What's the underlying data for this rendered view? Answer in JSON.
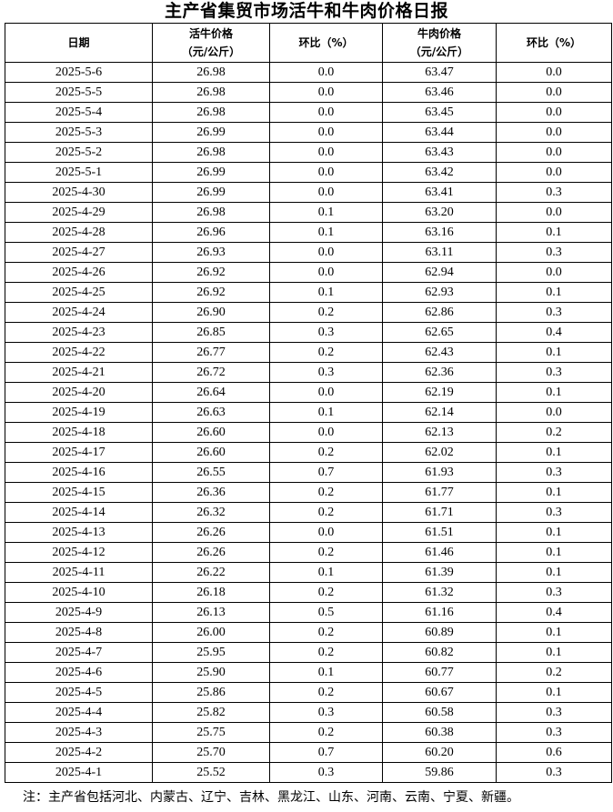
{
  "title": "主产省集贸市场活牛和牛肉价格日报",
  "headers": {
    "date": "日期",
    "cattle_price": "活牛价格",
    "cattle_unit": "（元/公斤）",
    "cattle_mom": "环比（%）",
    "beef_price": "牛肉价格",
    "beef_unit": "（元/公斤）",
    "beef_mom": "环比（%）"
  },
  "rows": [
    [
      "2025-5-6",
      "26.98",
      "0.0",
      "63.47",
      "0.0"
    ],
    [
      "2025-5-5",
      "26.98",
      "0.0",
      "63.46",
      "0.0"
    ],
    [
      "2025-5-4",
      "26.98",
      "0.0",
      "63.45",
      "0.0"
    ],
    [
      "2025-5-3",
      "26.99",
      "0.0",
      "63.44",
      "0.0"
    ],
    [
      "2025-5-2",
      "26.98",
      "0.0",
      "63.43",
      "0.0"
    ],
    [
      "2025-5-1",
      "26.99",
      "0.0",
      "63.42",
      "0.0"
    ],
    [
      "2025-4-30",
      "26.99",
      "0.0",
      "63.41",
      "0.3"
    ],
    [
      "2025-4-29",
      "26.98",
      "0.1",
      "63.20",
      "0.0"
    ],
    [
      "2025-4-28",
      "26.96",
      "0.1",
      "63.16",
      "0.1"
    ],
    [
      "2025-4-27",
      "26.93",
      "0.0",
      "63.11",
      "0.3"
    ],
    [
      "2025-4-26",
      "26.92",
      "0.0",
      "62.94",
      "0.0"
    ],
    [
      "2025-4-25",
      "26.92",
      "0.1",
      "62.93",
      "0.1"
    ],
    [
      "2025-4-24",
      "26.90",
      "0.2",
      "62.86",
      "0.3"
    ],
    [
      "2025-4-23",
      "26.85",
      "0.3",
      "62.65",
      "0.4"
    ],
    [
      "2025-4-22",
      "26.77",
      "0.2",
      "62.43",
      "0.1"
    ],
    [
      "2025-4-21",
      "26.72",
      "0.3",
      "62.36",
      "0.3"
    ],
    [
      "2025-4-20",
      "26.64",
      "0.0",
      "62.19",
      "0.1"
    ],
    [
      "2025-4-19",
      "26.63",
      "0.1",
      "62.14",
      "0.0"
    ],
    [
      "2025-4-18",
      "26.60",
      "0.0",
      "62.13",
      "0.2"
    ],
    [
      "2025-4-17",
      "26.60",
      "0.2",
      "62.02",
      "0.1"
    ],
    [
      "2025-4-16",
      "26.55",
      "0.7",
      "61.93",
      "0.3"
    ],
    [
      "2025-4-15",
      "26.36",
      "0.2",
      "61.77",
      "0.1"
    ],
    [
      "2025-4-14",
      "26.32",
      "0.2",
      "61.71",
      "0.3"
    ],
    [
      "2025-4-13",
      "26.26",
      "0.0",
      "61.51",
      "0.1"
    ],
    [
      "2025-4-12",
      "26.26",
      "0.2",
      "61.46",
      "0.1"
    ],
    [
      "2025-4-11",
      "26.22",
      "0.1",
      "61.39",
      "0.1"
    ],
    [
      "2025-4-10",
      "26.18",
      "0.2",
      "61.32",
      "0.3"
    ],
    [
      "2025-4-9",
      "26.13",
      "0.5",
      "61.16",
      "0.4"
    ],
    [
      "2025-4-8",
      "26.00",
      "0.2",
      "60.89",
      "0.1"
    ],
    [
      "2025-4-7",
      "25.95",
      "0.2",
      "60.82",
      "0.1"
    ],
    [
      "2025-4-6",
      "25.90",
      "0.1",
      "60.77",
      "0.2"
    ],
    [
      "2025-4-5",
      "25.86",
      "0.2",
      "60.67",
      "0.1"
    ],
    [
      "2025-4-4",
      "25.82",
      "0.3",
      "60.58",
      "0.3"
    ],
    [
      "2025-4-3",
      "25.75",
      "0.2",
      "60.38",
      "0.3"
    ],
    [
      "2025-4-2",
      "25.70",
      "0.7",
      "60.20",
      "0.6"
    ],
    [
      "2025-4-1",
      "25.52",
      "0.3",
      "59.86",
      "0.3"
    ]
  ],
  "note": "注：主产省包括河北、内蒙古、辽宁、吉林、黑龙江、山东、河南、云南、宁夏、新疆。"
}
